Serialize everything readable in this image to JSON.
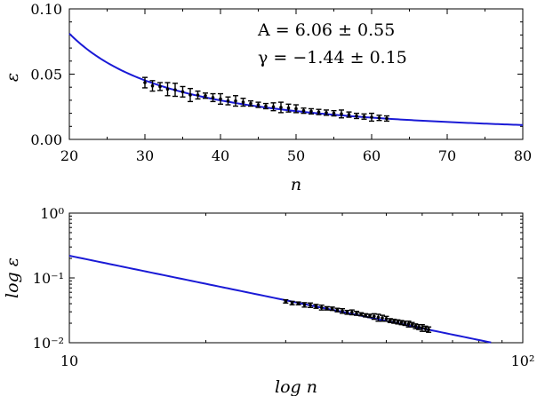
{
  "chart_data": [
    {
      "type": "scatter",
      "xscale": "linear",
      "yscale": "linear",
      "xlim": [
        20,
        80
      ],
      "ylim": [
        0.0,
        0.1
      ],
      "xlabel": "n",
      "ylabel": "ε",
      "xticks": [
        "20",
        "30",
        "40",
        "50",
        "60",
        "70",
        "80"
      ],
      "yticks": [
        "0.00",
        "0.05",
        "0.10"
      ],
      "annotations": [
        "A = 6.06 ± 0.55",
        "γ = −1.44 ± 0.15"
      ],
      "fit": {
        "A": 6.06,
        "gamma": -1.44,
        "x_from": 20,
        "x_to": 80
      },
      "points": [
        {
          "x": 30,
          "y": 0.0435,
          "err": 0.004
        },
        {
          "x": 31,
          "y": 0.041,
          "err": 0.004
        },
        {
          "x": 32,
          "y": 0.0405,
          "err": 0.003
        },
        {
          "x": 33,
          "y": 0.0385,
          "err": 0.005
        },
        {
          "x": 34,
          "y": 0.038,
          "err": 0.005
        },
        {
          "x": 35,
          "y": 0.0365,
          "err": 0.004
        },
        {
          "x": 36,
          "y": 0.034,
          "err": 0.005
        },
        {
          "x": 37,
          "y": 0.034,
          "err": 0.003
        },
        {
          "x": 38,
          "y": 0.0335,
          "err": 0.002
        },
        {
          "x": 39,
          "y": 0.032,
          "err": 0.003
        },
        {
          "x": 40,
          "y": 0.031,
          "err": 0.004
        },
        {
          "x": 41,
          "y": 0.0295,
          "err": 0.003
        },
        {
          "x": 42,
          "y": 0.0295,
          "err": 0.004
        },
        {
          "x": 43,
          "y": 0.0285,
          "err": 0.003
        },
        {
          "x": 44,
          "y": 0.0275,
          "err": 0.002
        },
        {
          "x": 45,
          "y": 0.0265,
          "err": 0.002
        },
        {
          "x": 46,
          "y": 0.0255,
          "err": 0.002
        },
        {
          "x": 47,
          "y": 0.025,
          "err": 0.003
        },
        {
          "x": 48,
          "y": 0.0245,
          "err": 0.004
        },
        {
          "x": 49,
          "y": 0.024,
          "err": 0.003
        },
        {
          "x": 50,
          "y": 0.0235,
          "err": 0.003
        },
        {
          "x": 51,
          "y": 0.022,
          "err": 0.002
        },
        {
          "x": 52,
          "y": 0.0215,
          "err": 0.002
        },
        {
          "x": 53,
          "y": 0.021,
          "err": 0.002
        },
        {
          "x": 54,
          "y": 0.0205,
          "err": 0.002
        },
        {
          "x": 55,
          "y": 0.02,
          "err": 0.002
        },
        {
          "x": 56,
          "y": 0.0195,
          "err": 0.003
        },
        {
          "x": 57,
          "y": 0.019,
          "err": 0.002
        },
        {
          "x": 58,
          "y": 0.018,
          "err": 0.002
        },
        {
          "x": 59,
          "y": 0.0175,
          "err": 0.002
        },
        {
          "x": 60,
          "y": 0.017,
          "err": 0.003
        },
        {
          "x": 61,
          "y": 0.0165,
          "err": 0.002
        },
        {
          "x": 62,
          "y": 0.016,
          "err": 0.002
        }
      ]
    },
    {
      "type": "scatter",
      "xscale": "log",
      "yscale": "log",
      "xlim": [
        10,
        100
      ],
      "ylim": [
        0.01,
        1
      ],
      "xlabel": "log n",
      "ylabel": "log ε",
      "xticks": [
        "10",
        "10²"
      ],
      "yticks": [
        "10⁻²",
        "10⁻¹",
        "10⁰"
      ],
      "fit": {
        "A": 6.06,
        "gamma": -1.44,
        "x_from": 10,
        "x_to": 100
      },
      "points": [
        {
          "x": 30,
          "y": 0.0435,
          "err": 0.0025
        },
        {
          "x": 31,
          "y": 0.041,
          "err": 0.0025
        },
        {
          "x": 32,
          "y": 0.0405,
          "err": 0.002
        },
        {
          "x": 33,
          "y": 0.0385,
          "err": 0.003
        },
        {
          "x": 34,
          "y": 0.038,
          "err": 0.003
        },
        {
          "x": 35,
          "y": 0.0365,
          "err": 0.0025
        },
        {
          "x": 36,
          "y": 0.035,
          "err": 0.003
        },
        {
          "x": 37,
          "y": 0.034,
          "err": 0.002
        },
        {
          "x": 38,
          "y": 0.0335,
          "err": 0.002
        },
        {
          "x": 39,
          "y": 0.032,
          "err": 0.002
        },
        {
          "x": 40,
          "y": 0.031,
          "err": 0.0025
        },
        {
          "x": 41,
          "y": 0.0295,
          "err": 0.002
        },
        {
          "x": 42,
          "y": 0.0295,
          "err": 0.0025
        },
        {
          "x": 43,
          "y": 0.0285,
          "err": 0.002
        },
        {
          "x": 44,
          "y": 0.0275,
          "err": 0.0015
        },
        {
          "x": 45,
          "y": 0.0265,
          "err": 0.0015
        },
        {
          "x": 46,
          "y": 0.026,
          "err": 0.0015
        },
        {
          "x": 47,
          "y": 0.0255,
          "err": 0.0025
        },
        {
          "x": 48,
          "y": 0.0245,
          "err": 0.003
        },
        {
          "x": 49,
          "y": 0.024,
          "err": 0.0025
        },
        {
          "x": 50,
          "y": 0.0235,
          "err": 0.002
        },
        {
          "x": 51,
          "y": 0.022,
          "err": 0.0015
        },
        {
          "x": 52,
          "y": 0.0215,
          "err": 0.0015
        },
        {
          "x": 53,
          "y": 0.021,
          "err": 0.0015
        },
        {
          "x": 54,
          "y": 0.0205,
          "err": 0.0015
        },
        {
          "x": 55,
          "y": 0.02,
          "err": 0.0015
        },
        {
          "x": 56,
          "y": 0.0195,
          "err": 0.002
        },
        {
          "x": 57,
          "y": 0.019,
          "err": 0.0015
        },
        {
          "x": 58,
          "y": 0.018,
          "err": 0.0015
        },
        {
          "x": 59,
          "y": 0.0175,
          "err": 0.0015
        },
        {
          "x": 60,
          "y": 0.017,
          "err": 0.002
        },
        {
          "x": 61,
          "y": 0.0165,
          "err": 0.0015
        },
        {
          "x": 62,
          "y": 0.016,
          "err": 0.0015
        }
      ]
    }
  ],
  "colors": {
    "fit_line": "#1a1ad6",
    "points": "#000000",
    "axes": "#000000"
  }
}
